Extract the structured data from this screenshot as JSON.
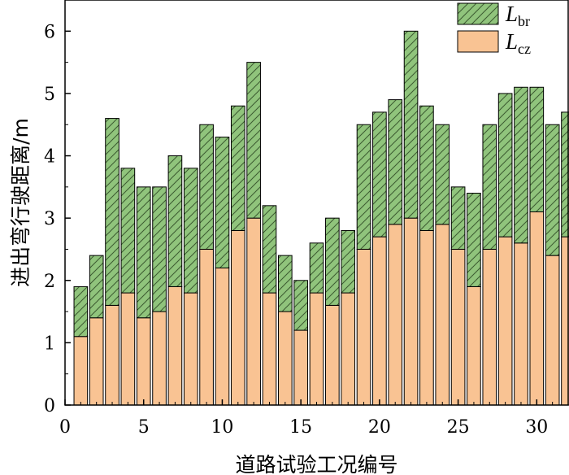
{
  "chart_data": {
    "type": "bar",
    "stacked": true,
    "xlabel": "道路试验工况编号",
    "ylabel": "进出弯行驶距离/m",
    "x": [
      1,
      2,
      3,
      4,
      5,
      6,
      7,
      8,
      9,
      10,
      11,
      12,
      13,
      14,
      15,
      16,
      17,
      18,
      19,
      20,
      21,
      22,
      23,
      24,
      25,
      26,
      27,
      28,
      29,
      30,
      31,
      32
    ],
    "xlim": [
      0,
      32
    ],
    "ylim": [
      0,
      6.5
    ],
    "xticks": [
      0,
      5,
      10,
      15,
      20,
      25,
      30
    ],
    "yticks": [
      0,
      1,
      2,
      3,
      4,
      5,
      6
    ],
    "legend_position": "top-right",
    "series": [
      {
        "key": "cz",
        "legend": {
          "symbol": "L",
          "subscript": "cz"
        },
        "color": "#f9c393",
        "pattern": "solid",
        "values": [
          1.1,
          1.4,
          1.6,
          1.8,
          1.4,
          1.5,
          1.9,
          1.8,
          2.5,
          2.2,
          2.8,
          3.0,
          1.8,
          1.5,
          1.2,
          1.8,
          1.6,
          1.8,
          2.5,
          2.7,
          2.9,
          3.0,
          2.8,
          2.9,
          2.5,
          1.9,
          2.5,
          2.7,
          2.6,
          3.1,
          2.4,
          2.7
        ]
      },
      {
        "key": "br",
        "legend": {
          "symbol": "L",
          "subscript": "br"
        },
        "color": "#90c47c",
        "pattern": "diagonal-hatch",
        "values": [
          0.8,
          1.0,
          3.0,
          2.0,
          2.1,
          2.0,
          2.1,
          2.0,
          2.0,
          2.1,
          2.0,
          2.5,
          1.4,
          0.9,
          0.8,
          0.8,
          1.4,
          1.0,
          2.0,
          2.0,
          2.0,
          3.0,
          2.0,
          1.6,
          1.0,
          1.5,
          2.0,
          2.3,
          2.5,
          2.0,
          2.1,
          2.0
        ]
      }
    ]
  }
}
